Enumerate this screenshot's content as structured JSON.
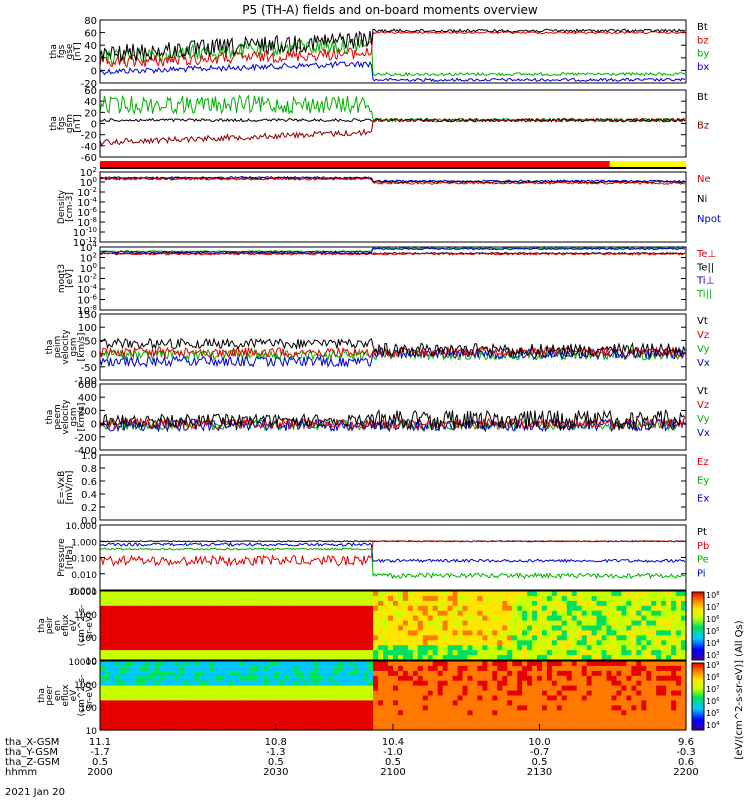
{
  "title": "P5 (TH-A) fields and on-board moments overview",
  "date_label": "2021 Jan 20",
  "orbit_rows": [
    {
      "label": "tha_X-GSM",
      "values": [
        "11.1",
        "10.8",
        "10.4",
        "10.0",
        "9.6"
      ]
    },
    {
      "label": "tha_Y-GSM",
      "values": [
        "-1.7",
        "-1.3",
        "-1.0",
        "-0.7",
        "-0.3"
      ]
    },
    {
      "label": "tha_Z-GSM",
      "values": [
        "0.5",
        "0.5",
        "0.5",
        "0.5",
        "0.6"
      ]
    },
    {
      "label": "hhmm",
      "values": [
        "2000",
        "2030",
        "2100",
        "2130",
        "2200"
      ]
    }
  ],
  "colorbar": {
    "label": "[eV/(cm^2-s-sr-eV)] (All Qs)",
    "ticks_top": [
      "10^8",
      "10^7",
      "10^6",
      "10^5",
      "10^4",
      "10^3"
    ],
    "ticks_bottom": [
      "10^9",
      "10^8",
      "10^7",
      "10^6",
      "10^5",
      "10^4"
    ]
  },
  "bars": {
    "colors": [
      "#ff0000",
      "#ffff00"
    ],
    "split_fraction": 0.87
  },
  "panels": [
    {
      "id": "fgs-gse",
      "ylabel": [
        "tha",
        "fgs",
        "gse",
        "[nT]"
      ],
      "ticks": [
        "80",
        "60",
        "40",
        "20",
        "0",
        "-20"
      ],
      "legend": [
        {
          "text": "Bt",
          "color": "#000000"
        },
        {
          "text": "bz",
          "color": "#e00000"
        },
        {
          "text": "by",
          "color": "#00b000"
        },
        {
          "text": "bx",
          "color": "#0000d0"
        }
      ]
    },
    {
      "id": "fgs-gsm",
      "ylabel": [
        "tha",
        "fgs",
        "gsm",
        "[nT]"
      ],
      "ticks": [
        "60",
        "40",
        "20",
        "0",
        "-20",
        "-40",
        "-60"
      ],
      "legend": [
        {
          "text": "Bt",
          "color": "#000000"
        },
        {
          "text": "Bz",
          "color": "#8b0000"
        }
      ]
    },
    {
      "id": "density",
      "ylabel": [
        "Density",
        "[cm-3]"
      ],
      "ticks": [
        "10^2",
        "10^0",
        "10^-2",
        "10^-4",
        "10^-6",
        "10^-8",
        "10^-10",
        "10^-12"
      ],
      "legend": [
        {
          "text": "Ne",
          "color": "#e00000"
        },
        {
          "text": "Ni",
          "color": "#000000"
        },
        {
          "text": "Npot",
          "color": "#0000d0"
        }
      ]
    },
    {
      "id": "temperature",
      "ylabel": [
        "moqt3",
        "[eV]"
      ],
      "ticks": [
        "10^4",
        "10^2",
        "10^0",
        "10^-2",
        "10^-4",
        "10^-6",
        "10^-8"
      ],
      "legend": [
        {
          "text": "Te⊥",
          "color": "#e00000"
        },
        {
          "text": "Te||",
          "color": "#000000"
        },
        {
          "text": "Ti⊥",
          "color": "#0000d0"
        },
        {
          "text": "Ti||",
          "color": "#00b000"
        }
      ]
    },
    {
      "id": "peim-velocity",
      "ylabel": [
        "tha",
        "peim",
        "velocity",
        "gsm",
        "[km/s]"
      ],
      "ticks": [
        "150",
        "100",
        "50",
        "0",
        "-50",
        "-100"
      ],
      "legend": [
        {
          "text": "Vt",
          "color": "#000000"
        },
        {
          "text": "Vz",
          "color": "#e00000"
        },
        {
          "text": "Vy",
          "color": "#00b000"
        },
        {
          "text": "Vx",
          "color": "#0000d0"
        }
      ]
    },
    {
      "id": "peem-velocity",
      "ylabel": [
        "tha",
        "peem",
        "velocity",
        "gsm",
        "[km/s]"
      ],
      "ticks": [
        "600",
        "400",
        "200",
        "0",
        "-200",
        "-400"
      ],
      "legend": [
        {
          "text": "Vt",
          "color": "#000000"
        },
        {
          "text": "Vz",
          "color": "#e00000"
        },
        {
          "text": "Vy",
          "color": "#00b000"
        },
        {
          "text": "Vx",
          "color": "#0000d0"
        }
      ]
    },
    {
      "id": "efield",
      "ylabel": [
        "E=-VxB",
        "[mV/m]"
      ],
      "ticks": [
        "1.0",
        "0.8",
        "0.6",
        "0.4",
        "0.2",
        "0.0"
      ],
      "legend": [
        {
          "text": "Ez",
          "color": "#e00000"
        },
        {
          "text": "Ey",
          "color": "#00b000"
        },
        {
          "text": "Ex",
          "color": "#0000d0"
        }
      ]
    },
    {
      "id": "pressure",
      "ylabel": [
        "Pressure",
        "[nPa]"
      ],
      "ticks": [
        "10.000",
        "1.000",
        "0.100",
        "0.010",
        "0.001"
      ],
      "legend": [
        {
          "text": "Pt",
          "color": "#000000"
        },
        {
          "text": "Pb",
          "color": "#e00000"
        },
        {
          "text": "Pe",
          "color": "#00b000"
        },
        {
          "text": "Pi",
          "color": "#0000d0"
        }
      ]
    },
    {
      "id": "peir-spectrogram",
      "ylabel": [
        "tha",
        "peir",
        "en",
        "eflux",
        "eV",
        "(cm^2-s-",
        "sr-eV)"
      ],
      "ticks": [
        "10000",
        "1000",
        "100",
        "10"
      ],
      "legend": []
    },
    {
      "id": "peer-spectrogram",
      "ylabel": [
        "tha",
        "peer",
        "en",
        "eflux",
        "eV",
        "(cm^2-s-",
        "sr-eV)"
      ],
      "ticks": [
        "10000",
        "1000",
        "100",
        "10"
      ],
      "legend": []
    }
  ],
  "chart_data": {
    "type": "line",
    "title": "P5 (TH-A) fields and on-board moments overview",
    "x": [
      "2000",
      "2030",
      "2100",
      "2130",
      "2200"
    ],
    "xlabel": "hhmm",
    "series": [
      {
        "name": "Bt",
        "panel": "fgs-gse",
        "x": [
          "2000",
          "2030",
          "2042",
          "2043",
          "2100",
          "2130",
          "2200"
        ],
        "values": [
          22,
          35,
          40,
          63,
          61,
          60,
          61
        ]
      },
      {
        "name": "bz",
        "panel": "fgs-gse",
        "x": [
          "2000",
          "2030",
          "2042",
          "2043",
          "2100",
          "2130",
          "2200"
        ],
        "values": [
          12,
          20,
          30,
          60,
          59,
          58,
          60
        ]
      },
      {
        "name": "by",
        "panel": "fgs-gse",
        "x": [
          "2000",
          "2030",
          "2042",
          "2043",
          "2100",
          "2130",
          "2200"
        ],
        "values": [
          15,
          28,
          35,
          0,
          2,
          3,
          3
        ]
      },
      {
        "name": "bx",
        "panel": "fgs-gse",
        "x": [
          "2000",
          "2030",
          "2042",
          "2043",
          "2100",
          "2130",
          "2200"
        ],
        "values": [
          0,
          0,
          2,
          -2,
          5,
          8,
          10
        ]
      },
      {
        "name": "Bz",
        "panel": "fgs-gsm",
        "x": [
          "2000",
          "2030",
          "2042",
          "2043",
          "2100",
          "2200"
        ],
        "values": [
          -45,
          -35,
          -25,
          0,
          0,
          0
        ]
      },
      {
        "name": "Ne",
        "panel": "density",
        "x": [
          "2000",
          "2042",
          "2043",
          "2110",
          "2200"
        ],
        "values": [
          1.0,
          1.0,
          0.3,
          0.1,
          0.1
        ]
      },
      {
        "name": "Vt",
        "panel": "peim-velocity",
        "x": [
          "2000",
          "2030",
          "2042",
          "2100",
          "2200"
        ],
        "values": [
          35,
          20,
          40,
          30,
          15
        ]
      },
      {
        "name": "Pt",
        "panel": "pressure",
        "x": [
          "2000",
          "2042",
          "2043",
          "2200"
        ],
        "values": [
          1.2,
          1.3,
          1.2,
          1.4
        ]
      },
      {
        "name": "Pb",
        "panel": "pressure",
        "x": [
          "2000",
          "2042",
          "2043",
          "2200"
        ],
        "values": [
          0.15,
          0.3,
          1.2,
          1.4
        ]
      },
      {
        "name": "Pe",
        "panel": "pressure",
        "x": [
          "2000",
          "2042",
          "2043",
          "2200"
        ],
        "values": [
          0.8,
          0.9,
          0.008,
          0.03
        ]
      },
      {
        "name": "Pi",
        "panel": "pressure",
        "x": [
          "2000",
          "2042",
          "2043",
          "2200"
        ],
        "values": [
          1.0,
          1.1,
          0.2,
          0.2
        ]
      }
    ],
    "grid": false
  }
}
